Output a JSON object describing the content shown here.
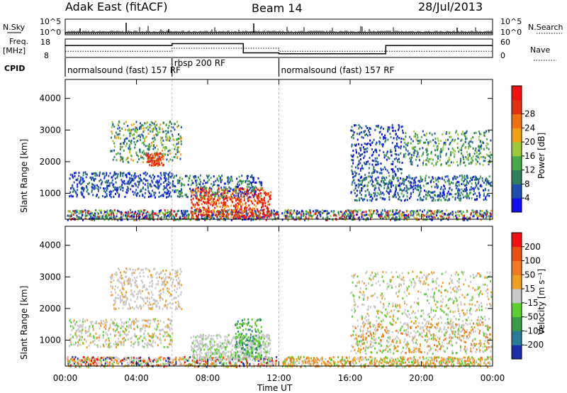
{
  "header": {
    "title": "Adak East (fitACF)",
    "beam": "Beam 14",
    "date": "28/Jul/2013"
  },
  "top_panels": {
    "nsky_label": "N.Sky",
    "nsearch_label": "N.Search",
    "counts_ticks": [
      "10^5",
      "10^0"
    ],
    "freq_label": "Freq.",
    "freq_unit": "[MHz]",
    "freq_ticks": [
      "18",
      "8"
    ],
    "nave_label": "Nave",
    "nave_ticks": [
      "60",
      "0"
    ],
    "cpid_label": "CPID",
    "cpid_segments": [
      {
        "label": "normalsound (fast) 157 RF",
        "start_hour": 0,
        "end_hour": 6
      },
      {
        "label": "rbsp 200 RF",
        "start_hour": 6,
        "end_hour": 12
      },
      {
        "label": "normalsound (fast) 157 RF",
        "start_hour": 12,
        "end_hour": 24
      }
    ],
    "freq_steps": [
      {
        "from_hour": 0,
        "to_hour": 6,
        "mhz": 14.5
      },
      {
        "from_hour": 6,
        "to_hour": 10,
        "mhz": 15.5
      },
      {
        "from_hour": 10,
        "to_hour": 12,
        "mhz": 10.5
      },
      {
        "from_hour": 12,
        "to_hour": 18,
        "mhz": 10.0
      },
      {
        "from_hour": 18,
        "to_hour": 24,
        "mhz": 14.5
      }
    ],
    "nave_steps": [
      {
        "from_hour": 0,
        "to_hour": 6,
        "value": 20
      },
      {
        "from_hour": 6,
        "to_hour": 12,
        "value": 30
      },
      {
        "from_hour": 12,
        "to_hour": 24,
        "value": 20
      }
    ]
  },
  "chart_data": [
    {
      "type": "heatmap",
      "name": "power",
      "ylabel": "Slant Range [km]",
      "ylim": [
        180,
        4600
      ],
      "yticks": [
        "1000",
        "2000",
        "3000",
        "4000"
      ],
      "colorbar_label": "Power [dB]",
      "colorbar_ticks": [
        "4",
        "8",
        "12",
        "16",
        "20",
        "24",
        "28"
      ],
      "colorbar_colors": [
        "#1010ee",
        "#1e4fb0",
        "#2f7f5c",
        "#49a84a",
        "#9bc93a",
        "#f0a010",
        "#f07010",
        "#e53010",
        "#ee1111"
      ]
    },
    {
      "type": "heatmap",
      "name": "velocity",
      "ylabel": "Slant Range [km]",
      "ylim": [
        180,
        4600
      ],
      "yticks": [
        "1000",
        "2000",
        "3000",
        "4000"
      ],
      "colorbar_label": "Velocity [m s⁻¹]",
      "colorbar_ticks": [
        "200",
        "100",
        "50",
        "15",
        "-15",
        "-50",
        "-100",
        "-200"
      ],
      "colorbar_colors": [
        "#1a2fa8",
        "#2a7a9a",
        "#3a9a4a",
        "#5ccf2f",
        "#c8c8c8",
        "#f0a020",
        "#f07a20",
        "#e85010",
        "#ee1111"
      ]
    }
  ],
  "x_axis": {
    "ticks": [
      "00:00",
      "04:00",
      "08:00",
      "12:00",
      "16:00",
      "20:00",
      "00:00"
    ],
    "label": "Time UT"
  }
}
